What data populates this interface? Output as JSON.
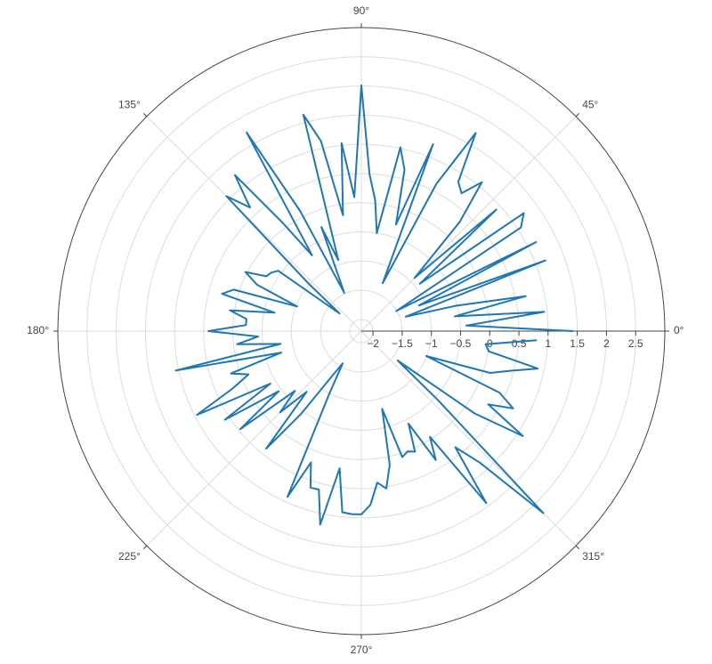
{
  "chart_data": {
    "type": "line",
    "subtype": "polar",
    "title": "",
    "radial_axis": {
      "range": [
        -2.2,
        3
      ],
      "tick_values": [
        -2,
        -1.5,
        -1,
        -0.5,
        0,
        0.5,
        1,
        1.5,
        2,
        2.5
      ],
      "tick_labels": [
        "−2",
        "−1.5",
        "−1",
        "−0.5",
        "0",
        "0.5",
        "1",
        "1.5",
        "2",
        "2.5"
      ],
      "label_angle_deg": 0
    },
    "angular_axis": {
      "direction": "counterclockwise",
      "rotation_deg": 0,
      "tick_values_deg": [
        0,
        45,
        90,
        135,
        180,
        225,
        270,
        315
      ],
      "tick_labels": [
        "0°",
        "45°",
        "90°",
        "135°",
        "180°",
        "225°",
        "270°",
        "315°"
      ]
    },
    "grid": true,
    "series": [
      {
        "color": "#1f77b4",
        "closed": false,
        "theta_deg": [
          0,
          3,
          6,
          9,
          12,
          15,
          18,
          21,
          24,
          27,
          30,
          33,
          36,
          39,
          42,
          45,
          48,
          51,
          54,
          57,
          60,
          63,
          66,
          69,
          72,
          75,
          78,
          81,
          84,
          87,
          90,
          93,
          96,
          99,
          102,
          105,
          108,
          111,
          114,
          117,
          120,
          123,
          126,
          129,
          132,
          135,
          138,
          141,
          144,
          147,
          150,
          153,
          156,
          159,
          162,
          165,
          168,
          171,
          174,
          177,
          180,
          183,
          186,
          189,
          192,
          195,
          198,
          201,
          204,
          207,
          210,
          213,
          216,
          219,
          222,
          225,
          228,
          231,
          234,
          237,
          240,
          243,
          246,
          249,
          252,
          255,
          258,
          261,
          264,
          267,
          270,
          273,
          276,
          279,
          282,
          285,
          288,
          291,
          294,
          297,
          300,
          303,
          306,
          309,
          312,
          315,
          318,
          321,
          324,
          327,
          330,
          333,
          336,
          339,
          342,
          345,
          348,
          351,
          354,
          357
        ],
        "r": [
          1.43,
          -0.4,
          0.95,
          -0.58,
          0.68,
          -0.52,
          -1.4,
          1.18,
          -1.12,
          1.16,
          -1.51,
          1.06,
          1.24,
          -0.91,
          0.91,
          -0.91,
          0.32,
          1.08,
          0.72,
          0.85,
          1.72,
          0.63,
          -1.3,
          1.23,
          -0.28,
          0.66,
          1.02,
          -0.5,
          0.06,
          0.49,
          2.01,
          0.1,
          1.04,
          -0.19,
          1.13,
          1.64,
          -0.92,
          -0.29,
          -1.48,
          0.11,
          1.73,
          -0.65,
          0.1,
          1.24,
          0.65,
          1.07,
          -0.99,
          -1.72,
          -0.44,
          -0.36,
          -0.32,
          0.03,
          -0.24,
          -1.02,
          0.1,
          0.27,
          -0.68,
          0.08,
          -0.22,
          -0.22,
          0.42,
          -0.43,
          -0.06,
          -0.8,
          1.05,
          -0.78,
          0.15,
          -0.13,
          0.21,
          0.96,
          -0.4,
          0.59,
          -0.45,
          0.47,
          -0.67,
          -0.23,
          -0.8,
          0.39,
          -0.45,
          -1.29,
          -1.56,
          -0.97,
          0.91,
          0.21,
          0.62,
          0.61,
          1.19,
          0.18,
          0.92,
          0.94,
          0.94,
          0.78,
          0.41,
          0.53,
          0.14,
          -0.82,
          0.07,
          0.01,
          0.06,
          -0.42,
          0.35,
          -0.04,
          1.44,
          0.36,
          0.83,
          2.21,
          -0.44,
          -1.4,
          0.2,
          1.1,
          0.31,
          0.72,
          0.39,
          -1.01,
          0.12,
          0.43,
          0.89,
          0.01,
          -0.06,
          0.81
        ]
      }
    ]
  }
}
